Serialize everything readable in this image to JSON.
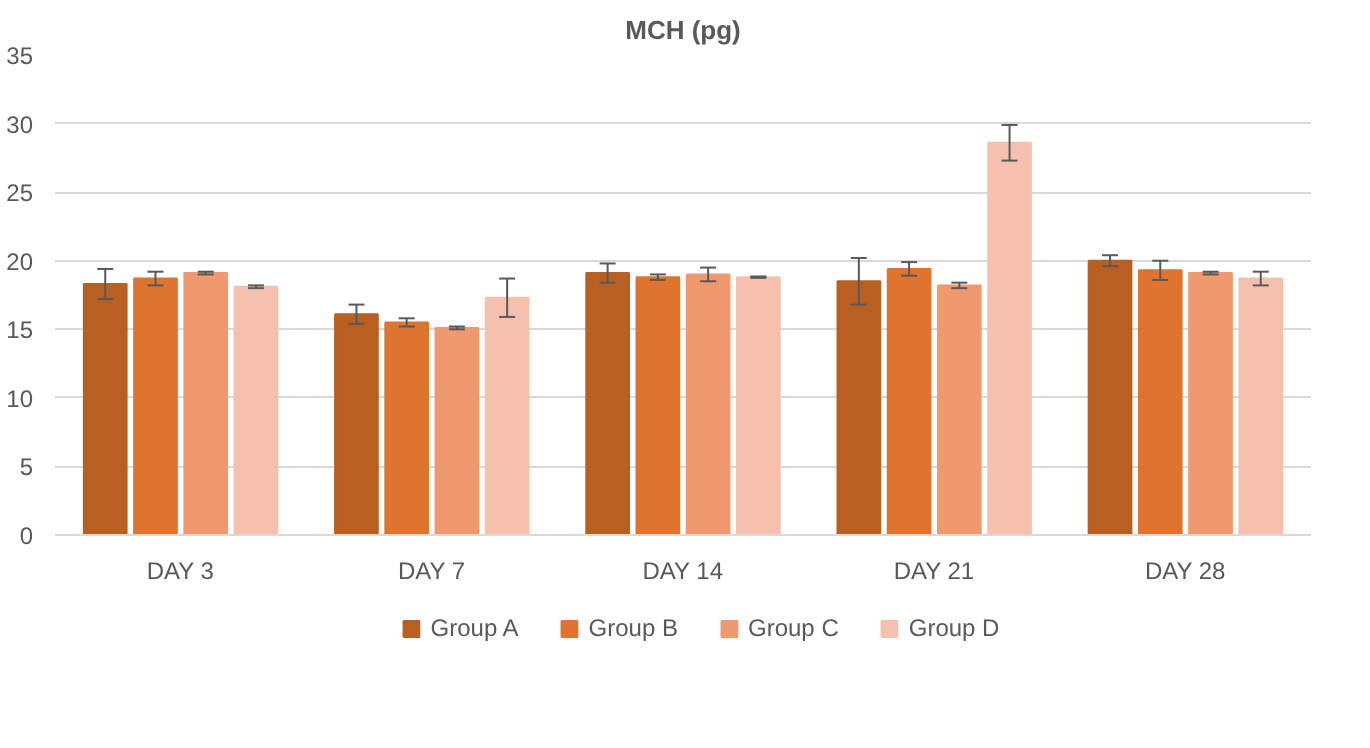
{
  "chart_data": {
    "type": "bar",
    "title": "MCH (pg)",
    "categories": [
      "DAY 3",
      "DAY 7",
      "DAY 14",
      "DAY 21",
      "DAY 28"
    ],
    "series": [
      {
        "name": "Group A",
        "color": "#b85f22",
        "values": [
          18.3,
          16.1,
          19.1,
          18.5,
          20.0
        ],
        "errors": [
          1.1,
          0.7,
          0.7,
          1.7,
          0.4
        ]
      },
      {
        "name": "Group B",
        "color": "#de742d",
        "values": [
          18.7,
          15.5,
          18.8,
          19.4,
          19.3
        ],
        "errors": [
          0.5,
          0.3,
          0.2,
          0.5,
          0.7
        ]
      },
      {
        "name": "Group C",
        "color": "#f0996f",
        "values": [
          19.1,
          15.1,
          19.0,
          18.2,
          19.1
        ],
        "errors": [
          0.1,
          0.1,
          0.5,
          0.2,
          0.1
        ]
      },
      {
        "name": "Group D",
        "color": "#f5c1ae",
        "values": [
          18.1,
          17.3,
          18.8,
          28.6,
          18.7
        ],
        "errors": [
          0.1,
          1.4,
          0.05,
          1.3,
          0.5
        ]
      }
    ],
    "ylim": [
      0,
      35
    ],
    "yticks": [
      0,
      5,
      10,
      15,
      20,
      25,
      30,
      35
    ],
    "grid": "y",
    "legend": "bottom"
  }
}
